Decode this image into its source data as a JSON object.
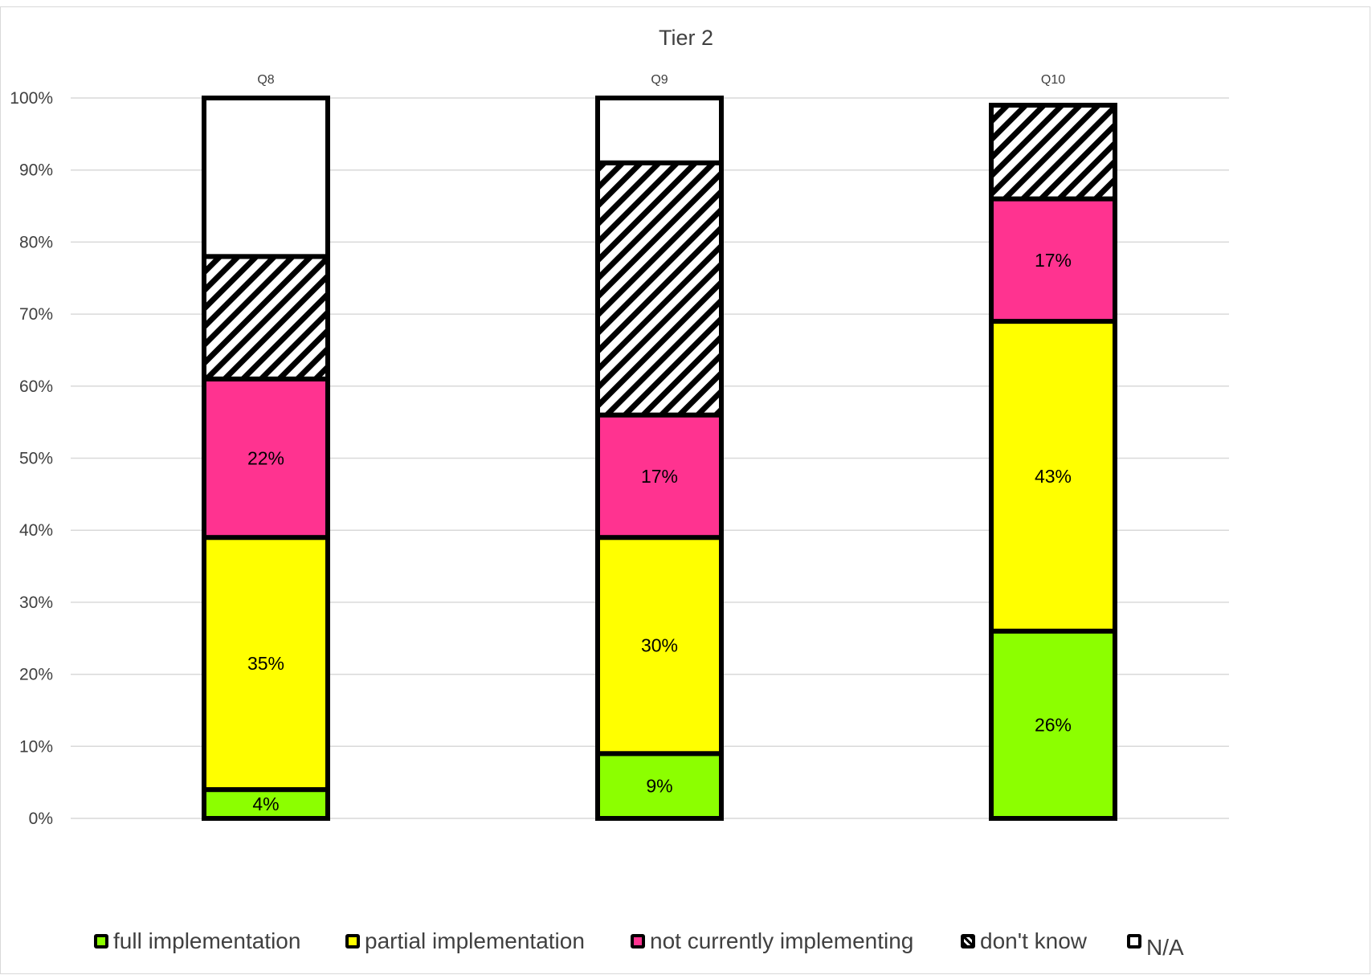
{
  "chart_data": {
    "type": "bar",
    "stacked": true,
    "title": "Tier 2",
    "categories": [
      "Q8",
      "Q9",
      "Q10"
    ],
    "category_axis_position": "top",
    "ylim": [
      0,
      1
    ],
    "yticks": [
      "0%",
      "10%",
      "20%",
      "30%",
      "40%",
      "50%",
      "60%",
      "70%",
      "80%",
      "90%",
      "100%"
    ],
    "grid": true,
    "legend_position": "bottom",
    "series": [
      {
        "name": "full implementation",
        "color": "#8cff00",
        "pattern": "solid",
        "values": [
          0.04,
          0.09,
          0.26
        ],
        "labels": [
          "4%",
          "9%",
          "26%"
        ]
      },
      {
        "name": "partial implementation",
        "color": "#ffff00",
        "pattern": "solid",
        "values": [
          0.35,
          0.3,
          0.43
        ],
        "labels": [
          "35%",
          "30%",
          "43%"
        ]
      },
      {
        "name": "not currently implementing",
        "color": "#ff3390",
        "pattern": "solid",
        "values": [
          0.22,
          0.17,
          0.17
        ],
        "labels": [
          "22%",
          "17%",
          "17%"
        ]
      },
      {
        "name": "don't know",
        "color": "#000000",
        "pattern": "diagonal-hatch",
        "values": [
          0.17,
          0.35,
          0.13
        ],
        "labels": [
          "",
          "",
          ""
        ]
      },
      {
        "name": "N/A",
        "color": "#ffffff",
        "pattern": "solid",
        "values": [
          0.22,
          0.09,
          0.0
        ],
        "labels": [
          "",
          "",
          ""
        ]
      }
    ]
  }
}
